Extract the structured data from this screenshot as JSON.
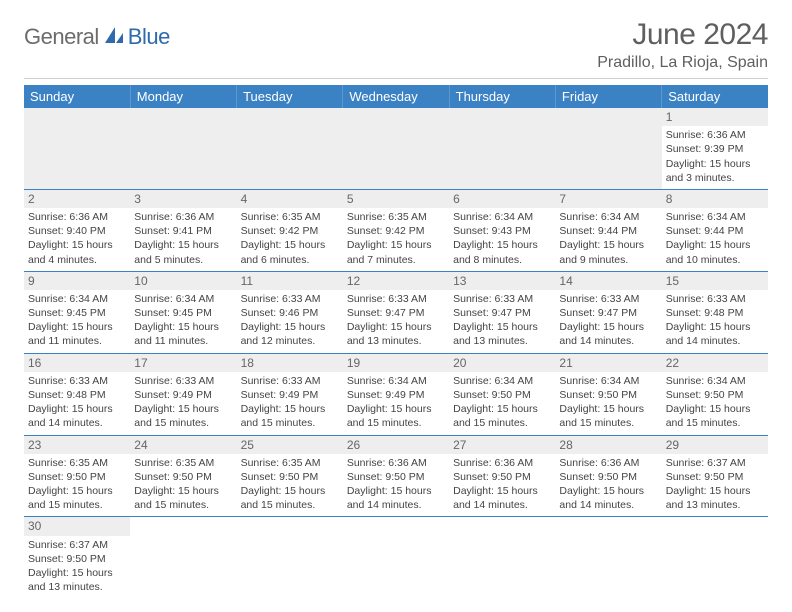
{
  "logo": {
    "part1": "General",
    "part2": "Blue"
  },
  "header": {
    "title": "June 2024",
    "location": "Pradillo, La Rioja, Spain"
  },
  "colors": {
    "header_bg": "#3b82c4",
    "header_text": "#ffffff",
    "row_border": "#3b82c4",
    "daynum_bg": "#eeeeee",
    "logo_gray": "#6c6c6c",
    "logo_blue": "#2f6aad",
    "title_color": "#5f5f5f"
  },
  "weekdays": [
    "Sunday",
    "Monday",
    "Tuesday",
    "Wednesday",
    "Thursday",
    "Friday",
    "Saturday"
  ],
  "grid": [
    [
      {
        "blank": true
      },
      {
        "blank": true
      },
      {
        "blank": true
      },
      {
        "blank": true
      },
      {
        "blank": true
      },
      {
        "blank": true
      },
      {
        "day": "1",
        "sunrise": "Sunrise: 6:36 AM",
        "sunset": "Sunset: 9:39 PM",
        "day1": "Daylight: 15 hours",
        "day2": "and 3 minutes."
      }
    ],
    [
      {
        "day": "2",
        "sunrise": "Sunrise: 6:36 AM",
        "sunset": "Sunset: 9:40 PM",
        "day1": "Daylight: 15 hours",
        "day2": "and 4 minutes."
      },
      {
        "day": "3",
        "sunrise": "Sunrise: 6:36 AM",
        "sunset": "Sunset: 9:41 PM",
        "day1": "Daylight: 15 hours",
        "day2": "and 5 minutes."
      },
      {
        "day": "4",
        "sunrise": "Sunrise: 6:35 AM",
        "sunset": "Sunset: 9:42 PM",
        "day1": "Daylight: 15 hours",
        "day2": "and 6 minutes."
      },
      {
        "day": "5",
        "sunrise": "Sunrise: 6:35 AM",
        "sunset": "Sunset: 9:42 PM",
        "day1": "Daylight: 15 hours",
        "day2": "and 7 minutes."
      },
      {
        "day": "6",
        "sunrise": "Sunrise: 6:34 AM",
        "sunset": "Sunset: 9:43 PM",
        "day1": "Daylight: 15 hours",
        "day2": "and 8 minutes."
      },
      {
        "day": "7",
        "sunrise": "Sunrise: 6:34 AM",
        "sunset": "Sunset: 9:44 PM",
        "day1": "Daylight: 15 hours",
        "day2": "and 9 minutes."
      },
      {
        "day": "8",
        "sunrise": "Sunrise: 6:34 AM",
        "sunset": "Sunset: 9:44 PM",
        "day1": "Daylight: 15 hours",
        "day2": "and 10 minutes."
      }
    ],
    [
      {
        "day": "9",
        "sunrise": "Sunrise: 6:34 AM",
        "sunset": "Sunset: 9:45 PM",
        "day1": "Daylight: 15 hours",
        "day2": "and 11 minutes."
      },
      {
        "day": "10",
        "sunrise": "Sunrise: 6:34 AM",
        "sunset": "Sunset: 9:45 PM",
        "day1": "Daylight: 15 hours",
        "day2": "and 11 minutes."
      },
      {
        "day": "11",
        "sunrise": "Sunrise: 6:33 AM",
        "sunset": "Sunset: 9:46 PM",
        "day1": "Daylight: 15 hours",
        "day2": "and 12 minutes."
      },
      {
        "day": "12",
        "sunrise": "Sunrise: 6:33 AM",
        "sunset": "Sunset: 9:47 PM",
        "day1": "Daylight: 15 hours",
        "day2": "and 13 minutes."
      },
      {
        "day": "13",
        "sunrise": "Sunrise: 6:33 AM",
        "sunset": "Sunset: 9:47 PM",
        "day1": "Daylight: 15 hours",
        "day2": "and 13 minutes."
      },
      {
        "day": "14",
        "sunrise": "Sunrise: 6:33 AM",
        "sunset": "Sunset: 9:47 PM",
        "day1": "Daylight: 15 hours",
        "day2": "and 14 minutes."
      },
      {
        "day": "15",
        "sunrise": "Sunrise: 6:33 AM",
        "sunset": "Sunset: 9:48 PM",
        "day1": "Daylight: 15 hours",
        "day2": "and 14 minutes."
      }
    ],
    [
      {
        "day": "16",
        "sunrise": "Sunrise: 6:33 AM",
        "sunset": "Sunset: 9:48 PM",
        "day1": "Daylight: 15 hours",
        "day2": "and 14 minutes."
      },
      {
        "day": "17",
        "sunrise": "Sunrise: 6:33 AM",
        "sunset": "Sunset: 9:49 PM",
        "day1": "Daylight: 15 hours",
        "day2": "and 15 minutes."
      },
      {
        "day": "18",
        "sunrise": "Sunrise: 6:33 AM",
        "sunset": "Sunset: 9:49 PM",
        "day1": "Daylight: 15 hours",
        "day2": "and 15 minutes."
      },
      {
        "day": "19",
        "sunrise": "Sunrise: 6:34 AM",
        "sunset": "Sunset: 9:49 PM",
        "day1": "Daylight: 15 hours",
        "day2": "and 15 minutes."
      },
      {
        "day": "20",
        "sunrise": "Sunrise: 6:34 AM",
        "sunset": "Sunset: 9:50 PM",
        "day1": "Daylight: 15 hours",
        "day2": "and 15 minutes."
      },
      {
        "day": "21",
        "sunrise": "Sunrise: 6:34 AM",
        "sunset": "Sunset: 9:50 PM",
        "day1": "Daylight: 15 hours",
        "day2": "and 15 minutes."
      },
      {
        "day": "22",
        "sunrise": "Sunrise: 6:34 AM",
        "sunset": "Sunset: 9:50 PM",
        "day1": "Daylight: 15 hours",
        "day2": "and 15 minutes."
      }
    ],
    [
      {
        "day": "23",
        "sunrise": "Sunrise: 6:35 AM",
        "sunset": "Sunset: 9:50 PM",
        "day1": "Daylight: 15 hours",
        "day2": "and 15 minutes."
      },
      {
        "day": "24",
        "sunrise": "Sunrise: 6:35 AM",
        "sunset": "Sunset: 9:50 PM",
        "day1": "Daylight: 15 hours",
        "day2": "and 15 minutes."
      },
      {
        "day": "25",
        "sunrise": "Sunrise: 6:35 AM",
        "sunset": "Sunset: 9:50 PM",
        "day1": "Daylight: 15 hours",
        "day2": "and 15 minutes."
      },
      {
        "day": "26",
        "sunrise": "Sunrise: 6:36 AM",
        "sunset": "Sunset: 9:50 PM",
        "day1": "Daylight: 15 hours",
        "day2": "and 14 minutes."
      },
      {
        "day": "27",
        "sunrise": "Sunrise: 6:36 AM",
        "sunset": "Sunset: 9:50 PM",
        "day1": "Daylight: 15 hours",
        "day2": "and 14 minutes."
      },
      {
        "day": "28",
        "sunrise": "Sunrise: 6:36 AM",
        "sunset": "Sunset: 9:50 PM",
        "day1": "Daylight: 15 hours",
        "day2": "and 14 minutes."
      },
      {
        "day": "29",
        "sunrise": "Sunrise: 6:37 AM",
        "sunset": "Sunset: 9:50 PM",
        "day1": "Daylight: 15 hours",
        "day2": "and 13 minutes."
      }
    ],
    [
      {
        "day": "30",
        "sunrise": "Sunrise: 6:37 AM",
        "sunset": "Sunset: 9:50 PM",
        "day1": "Daylight: 15 hours",
        "day2": "and 13 minutes."
      },
      {
        "blank": true
      },
      {
        "blank": true
      },
      {
        "blank": true
      },
      {
        "blank": true
      },
      {
        "blank": true
      },
      {
        "blank": true
      }
    ]
  ]
}
